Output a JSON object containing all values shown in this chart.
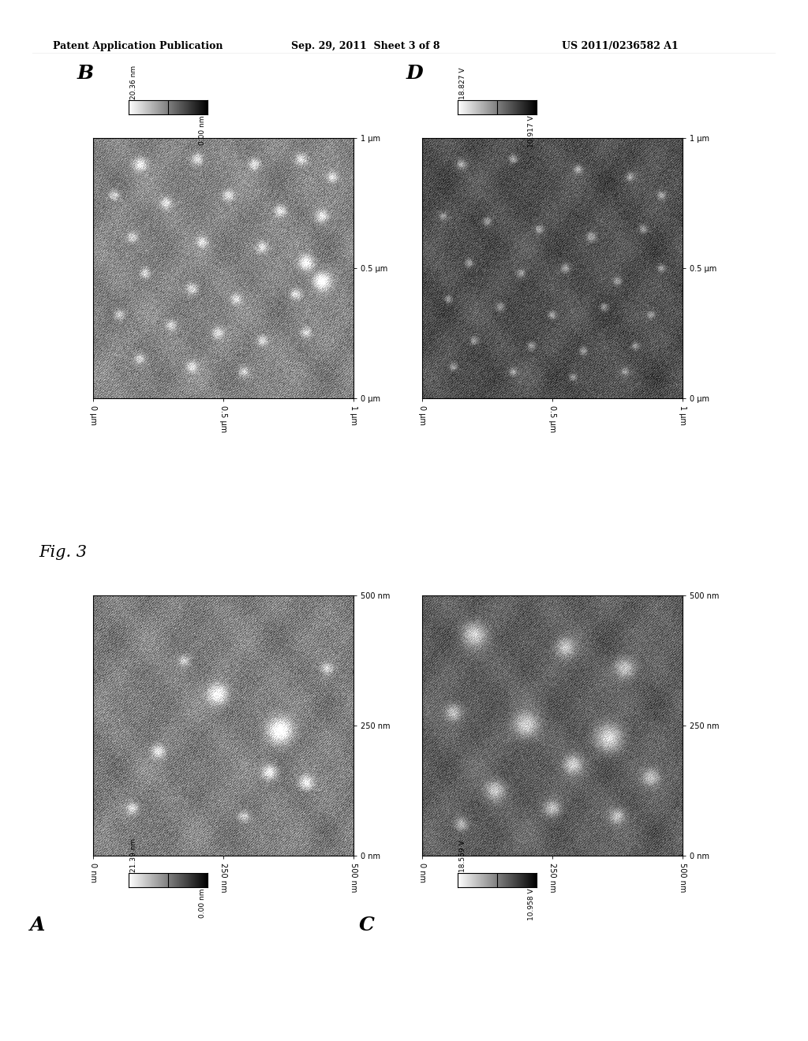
{
  "title": "Fig. 3",
  "header_left": "Patent Application Publication",
  "header_center": "Sep. 29, 2011  Sheet 3 of 8",
  "header_right": "US 2011/0236582 A1",
  "colorbar_A": {
    "max_label": "21.39 nm",
    "min_label": "0.00 nm"
  },
  "colorbar_B": {
    "max_label": "20.36 nm",
    "min_label": "0.00 nm"
  },
  "colorbar_C": {
    "max_label": "18.559 V",
    "min_label": "10.958 V"
  },
  "colorbar_D": {
    "max_label": "18.827 V",
    "min_label": "10.917 V"
  },
  "background_color": "#ffffff"
}
